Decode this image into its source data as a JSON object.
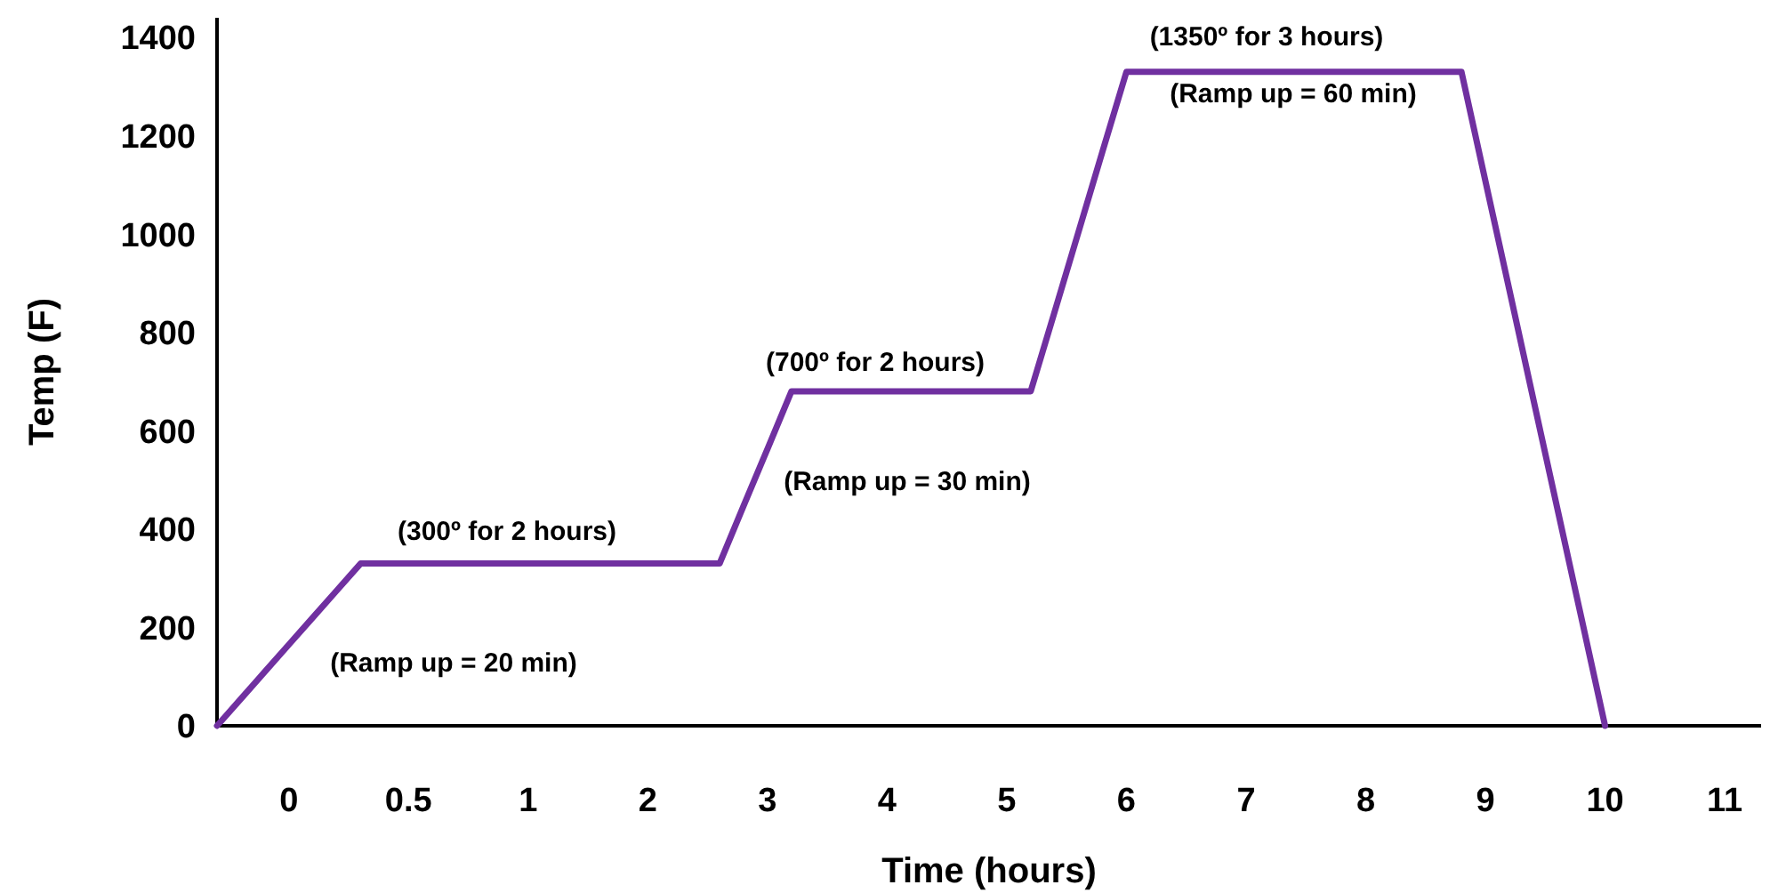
{
  "chart_data": {
    "type": "line",
    "xlabel": "Time (hours)",
    "ylabel": "Temp (F)",
    "categories": [
      null,
      null,
      null,
      "0",
      null,
      null,
      null,
      null,
      "0.5",
      null,
      null,
      null,
      null,
      "1",
      null,
      null,
      null,
      null,
      "2",
      null,
      null,
      null,
      null,
      "3",
      null,
      null,
      null,
      null,
      "4",
      null,
      null,
      null,
      null,
      "5",
      null,
      null,
      null,
      null,
      "6",
      null,
      null,
      null,
      null,
      "7",
      null,
      null,
      null,
      null,
      "8",
      null,
      null,
      null,
      null,
      "9",
      null,
      null,
      null,
      null,
      "10",
      null,
      null,
      null,
      null,
      "11",
      null
    ],
    "series": [
      {
        "color": "#7030a0",
        "values": [
          0,
          55,
          110,
          165,
          220,
          275,
          330,
          330,
          330,
          330,
          330,
          330,
          330,
          330,
          330,
          330,
          330,
          330,
          330,
          330,
          330,
          330,
          447,
          563,
          680,
          680,
          680,
          680,
          680,
          680,
          680,
          680,
          680,
          680,
          680,
          842,
          1005,
          1168,
          1330,
          1330,
          1330,
          1330,
          1330,
          1330,
          1330,
          1330,
          1330,
          1330,
          1330,
          1330,
          1330,
          1330,
          1330,
          1108,
          887,
          665,
          443,
          222,
          0,
          null,
          null,
          null,
          null,
          null,
          null
        ]
      }
    ],
    "ylim": [
      0,
      1440
    ],
    "yticks": [
      0,
      200,
      400,
      600,
      800,
      1000,
      1200,
      1400
    ],
    "grid": false,
    "marker": "none",
    "line_style": "solid",
    "annotations": [
      "(300º for 2 hours)",
      "(Ramp up = 20 min)",
      "(700º for 2 hours)",
      "(Ramp up = 30 min)",
      "(1350º for 3 hours)",
      "(Ramp up = 60 min)"
    ]
  }
}
